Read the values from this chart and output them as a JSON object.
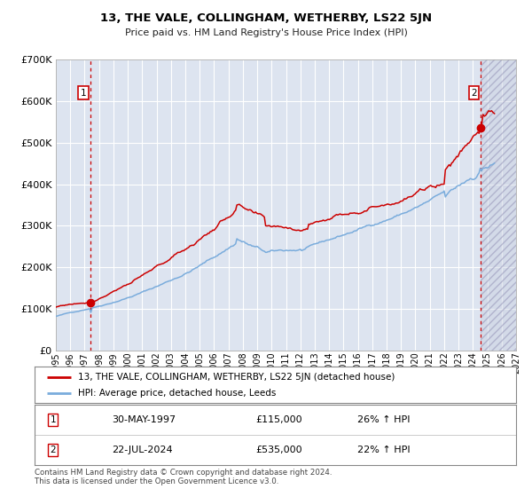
{
  "title": "13, THE VALE, COLLINGHAM, WETHERBY, LS22 5JN",
  "subtitle": "Price paid vs. HM Land Registry's House Price Index (HPI)",
  "legend_line1": "13, THE VALE, COLLINGHAM, WETHERBY, LS22 5JN (detached house)",
  "legend_line2": "HPI: Average price, detached house, Leeds",
  "annotation1_label": "1",
  "annotation1_date": "30-MAY-1997",
  "annotation1_price": "£115,000",
  "annotation1_hpi": "26% ↑ HPI",
  "annotation1_year": 1997.41,
  "annotation1_value": 115000,
  "annotation2_label": "2",
  "annotation2_date": "22-JUL-2024",
  "annotation2_price": "£535,000",
  "annotation2_hpi": "22% ↑ HPI",
  "annotation2_year": 2024.55,
  "annotation2_value": 535000,
  "xmin": 1995,
  "xmax": 2027,
  "ymin": 0,
  "ymax": 700000,
  "yticks": [
    0,
    100000,
    200000,
    300000,
    400000,
    500000,
    600000,
    700000
  ],
  "ytick_labels": [
    "£0",
    "£100K",
    "£200K",
    "£300K",
    "£400K",
    "£500K",
    "£600K",
    "£700K"
  ],
  "background_color": "#dde4f0",
  "grid_color": "#ffffff",
  "red_line_color": "#cc0000",
  "blue_line_color": "#7aacdc",
  "dashed_vline_color": "#cc0000",
  "footnote1": "Contains HM Land Registry data © Crown copyright and database right 2024.",
  "footnote2": "This data is licensed under the Open Government Licence v3.0."
}
